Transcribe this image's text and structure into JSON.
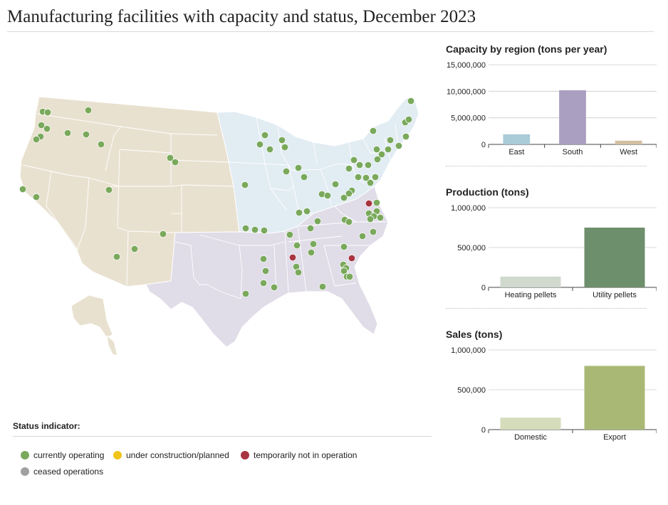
{
  "title": "Manufacturing facilities with capacity and status, December 2023",
  "colors": {
    "west_region": "#e9e1d0",
    "midwest_region": "#e2ecf3",
    "south_region": "#e0dce8",
    "operating": "#7aa95c",
    "construction": "#f0c419",
    "not_operating": "#a8343f",
    "ceased": "#a0a0a0"
  },
  "legend": {
    "title": "Status indicator:",
    "items": [
      {
        "label": "currently operating",
        "color": "#7aa95c"
      },
      {
        "label": "under construction/planned",
        "color": "#f0c419"
      },
      {
        "label": "temporarily not in operation",
        "color": "#a8343f"
      },
      {
        "label": "ceased operations",
        "color": "#a0a0a0"
      }
    ]
  },
  "chart_data": [
    {
      "type": "bar",
      "title": "Capacity by region (tons per year)",
      "categories": [
        "East",
        "South",
        "West"
      ],
      "values": [
        1900000,
        10200000,
        700000
      ],
      "colors": [
        "#aacbd8",
        "#aa9fc1",
        "#d3c0a0"
      ],
      "yticks": [
        "0",
        "5,000,000",
        "10,000,000",
        "15,000,000"
      ],
      "ylim": [
        0,
        15000000
      ]
    },
    {
      "type": "bar",
      "title": "Production (tons)",
      "categories": [
        "Heating pellets",
        "Utility pellets"
      ],
      "values": [
        135000,
        750000
      ],
      "colors": [
        "#cfd9cd",
        "#6e8f6b"
      ],
      "yticks": [
        "0",
        "500,000",
        "1,000,000"
      ],
      "ylim": [
        0,
        1000000
      ]
    },
    {
      "type": "bar",
      "title": "Sales (tons)",
      "categories": [
        "Domestic",
        "Export"
      ],
      "values": [
        150000,
        800000
      ],
      "colors": [
        "#d4dcbc",
        "#a9b975"
      ],
      "yticks": [
        "0",
        "500,000",
        "1,000,000"
      ],
      "ylim": [
        0,
        1000000
      ]
    }
  ]
}
